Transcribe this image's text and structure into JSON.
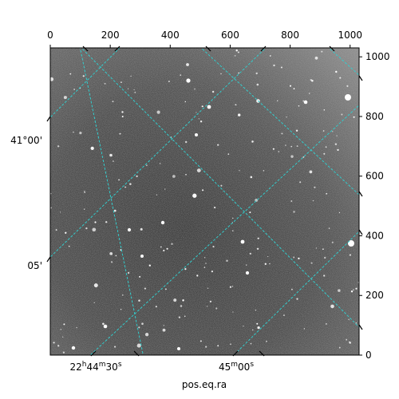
{
  "figure": {
    "xlabel": "pos.eq.ra",
    "grid_color": "#33cccc",
    "pixel_axes": {
      "top_x_ticks": [
        "0",
        "200",
        "400",
        "600",
        "800",
        "1000"
      ],
      "right_y_ticks": [
        "0",
        "200",
        "400",
        "600",
        "800",
        "1000"
      ]
    },
    "world_axes": {
      "ra_ticks": [
        {
          "h": "22",
          "m": "44",
          "s": "30"
        },
        {
          "h": "",
          "m": "45",
          "s": "00"
        }
      ],
      "dec_ticks": [
        "41°00'",
        "05'"
      ]
    }
  }
}
